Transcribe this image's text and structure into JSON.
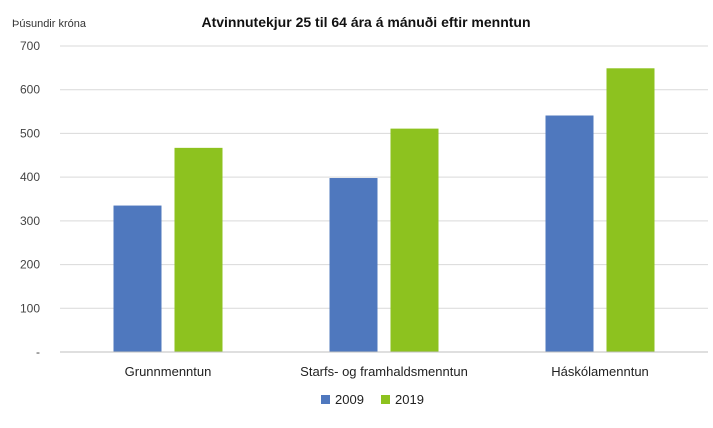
{
  "chart_data": {
    "type": "bar",
    "title": "Atvinnutekjur 25 til 64 ára á mánuði eftir menntun",
    "unit_label": "Þúsundir króna",
    "xlabel": "",
    "ylabel": "",
    "ylim": [
      0,
      700
    ],
    "y_ticks": [
      {
        "value": 0,
        "label": "-"
      },
      {
        "value": 100,
        "label": "100"
      },
      {
        "value": 200,
        "label": "200"
      },
      {
        "value": 300,
        "label": "300"
      },
      {
        "value": 400,
        "label": "400"
      },
      {
        "value": 500,
        "label": "500"
      },
      {
        "value": 600,
        "label": "600"
      },
      {
        "value": 700,
        "label": "700"
      }
    ],
    "grid": true,
    "legend_position": "bottom",
    "categories": [
      "Grunnmenntun",
      "Starfs- og framhaldsmenntun",
      "Háskólamenntun"
    ],
    "series": [
      {
        "name": "2009",
        "color": "#4F78BE",
        "values": [
          335,
          398,
          541
        ]
      },
      {
        "name": "2019",
        "color": "#8DC21F",
        "values": [
          467,
          511,
          649
        ]
      }
    ]
  }
}
